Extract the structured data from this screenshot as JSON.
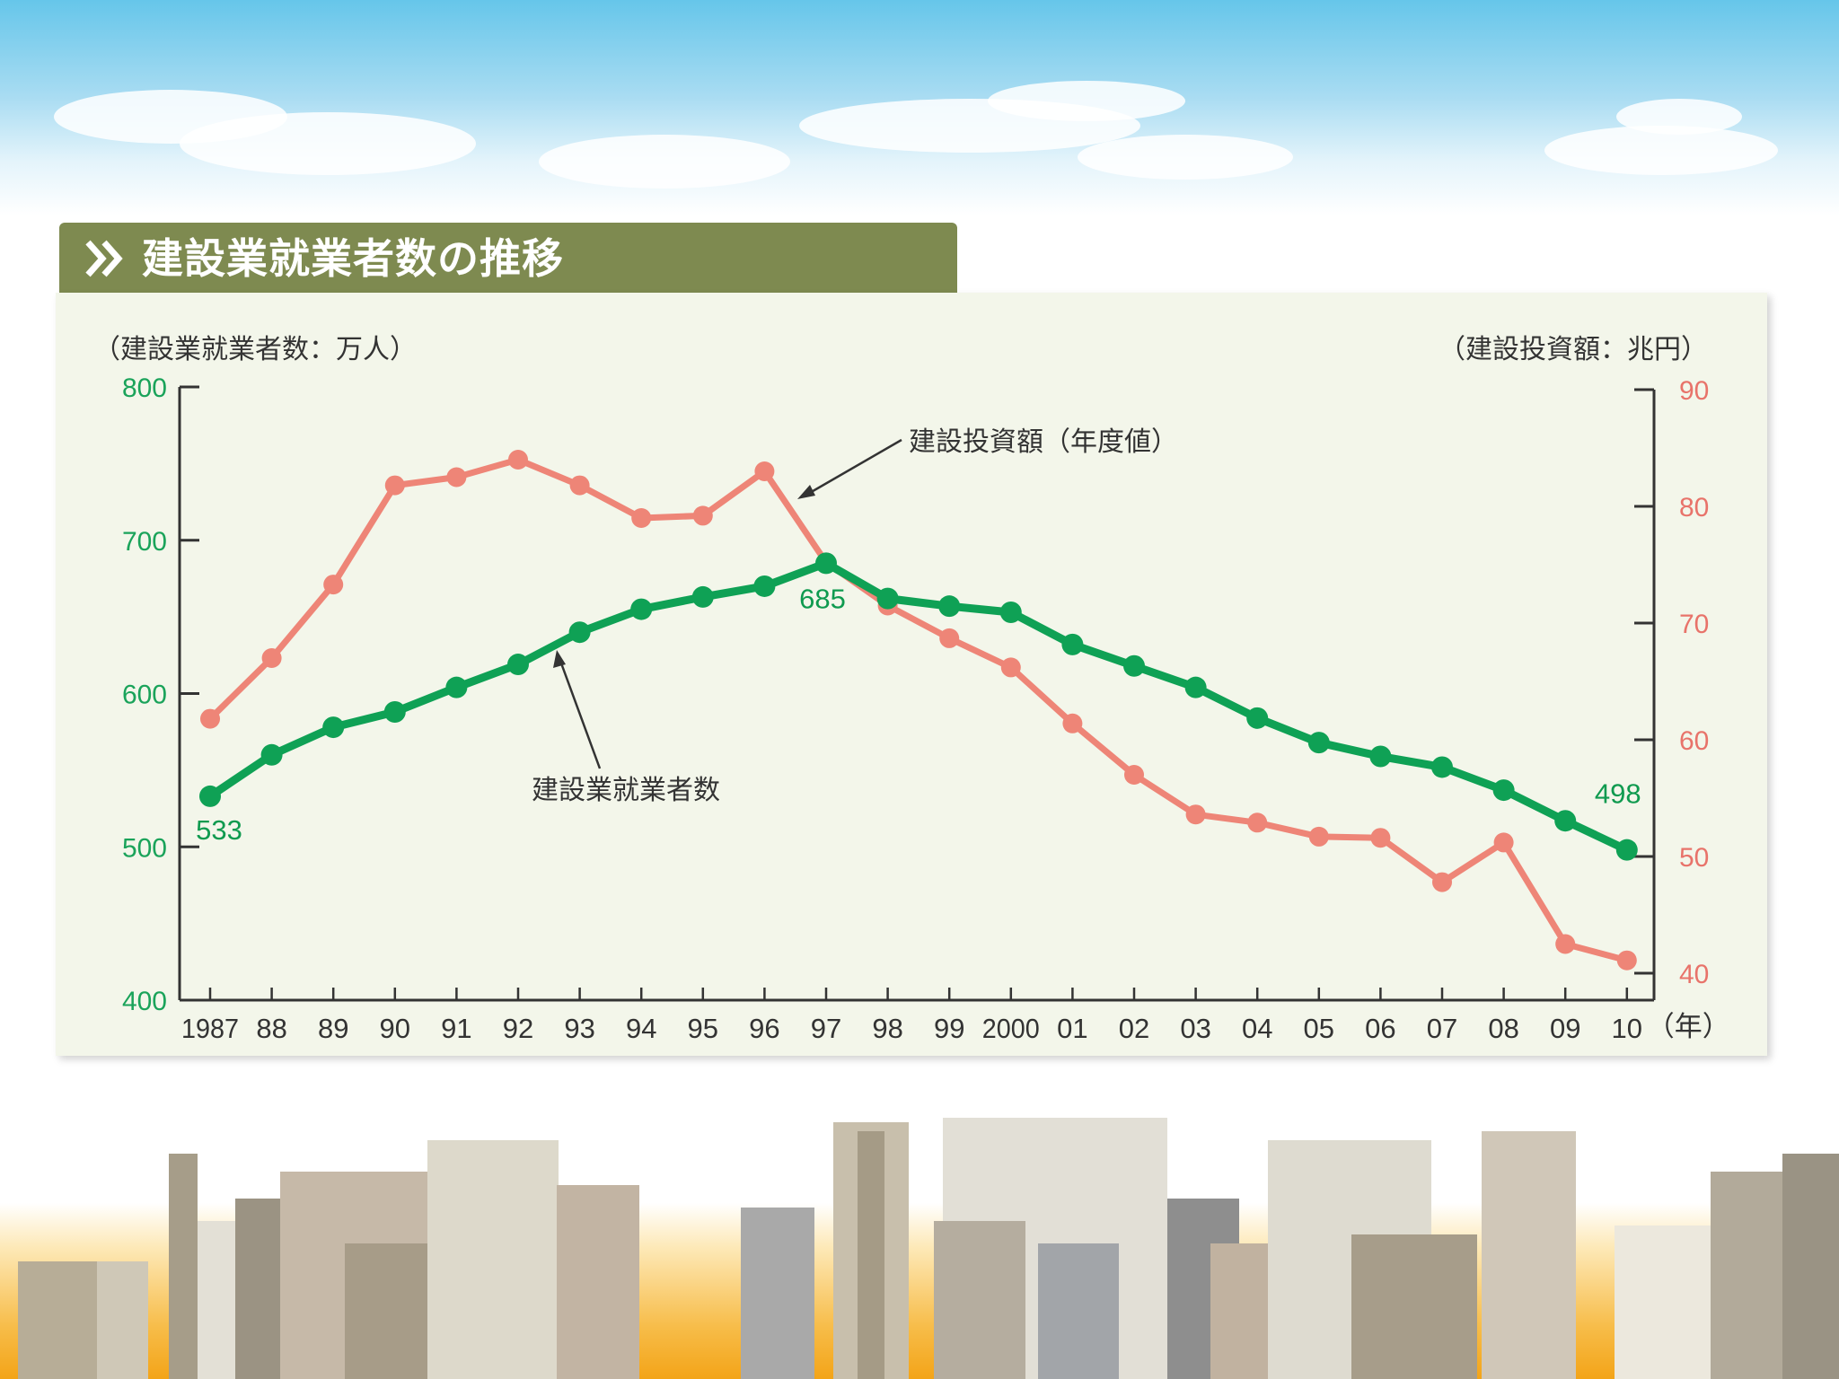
{
  "colors": {
    "employment": "#0fa155",
    "investment": "#ee8577",
    "left_axis_text": "#1aa35a",
    "right_axis_text": "#e8736a",
    "title_bar": "#7e8a50"
  },
  "header": {
    "title": "建設業就業者数の推移",
    "icon": "double-chevron-right-icon"
  },
  "chart_data": {
    "type": "line",
    "title": "建設業就業者数の推移",
    "ylabel_left": "（建設業就業者数：万人）",
    "ylabel_right": "（建設投資額：兆円）",
    "x_unit": "（年）",
    "categories": [
      "1987",
      "88",
      "89",
      "90",
      "91",
      "92",
      "93",
      "94",
      "95",
      "96",
      "97",
      "98",
      "99",
      "2000",
      "01",
      "02",
      "03",
      "04",
      "05",
      "06",
      "07",
      "08",
      "09",
      "10"
    ],
    "ylim_left": [
      400,
      800
    ],
    "yticks_left": [
      400,
      500,
      600,
      700,
      800
    ],
    "ylim_right": [
      37,
      90
    ],
    "yticks_right": [
      40,
      50,
      60,
      70,
      80,
      90
    ],
    "grid": false,
    "series": [
      {
        "name": "建設業就業者数",
        "axis": "left",
        "values": [
          533,
          560,
          578,
          588,
          604,
          619,
          640,
          655,
          663,
          670,
          685,
          662,
          657,
          653,
          632,
          618,
          604,
          584,
          568,
          559,
          552,
          537,
          517,
          498
        ]
      },
      {
        "name": "建設投資額（年度値）",
        "axis": "right",
        "values": [
          61.8,
          67.0,
          73.3,
          81.8,
          82.5,
          84.0,
          81.8,
          79.0,
          79.2,
          83.0,
          75.2,
          71.5,
          68.7,
          66.2,
          61.4,
          57.0,
          53.6,
          52.9,
          51.7,
          51.6,
          47.8,
          51.2,
          42.5,
          41.1
        ]
      }
    ],
    "data_labels": [
      {
        "series": 0,
        "index": 0,
        "text": "533"
      },
      {
        "series": 0,
        "index": 10,
        "text": "685"
      },
      {
        "series": 0,
        "index": 23,
        "text": "498"
      }
    ]
  }
}
